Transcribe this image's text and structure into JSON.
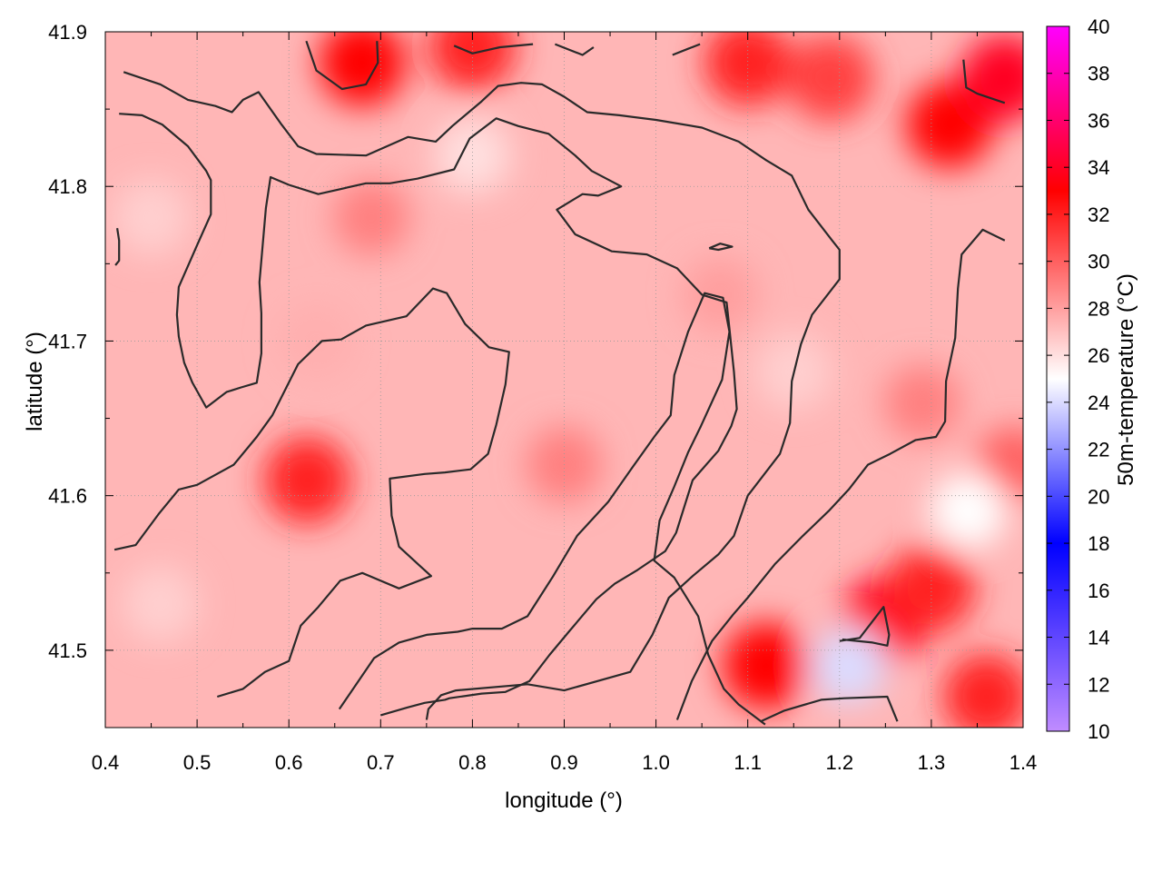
{
  "chart_data": {
    "type": "heatmap",
    "variable_label": "50m-temperature (°C)",
    "xlabel": "longitude (°)",
    "ylabel": "latitude (°)",
    "xlim": [
      0.4,
      1.4
    ],
    "ylim": [
      41.45,
      41.9
    ],
    "x_ticks": [
      "0.4",
      "0.5",
      "0.6",
      "0.7",
      "0.8",
      "0.9",
      "1.0",
      "1.1",
      "1.2",
      "1.3",
      "1.4"
    ],
    "y_ticks": [
      "41.5",
      "41.6",
      "41.7",
      "41.8",
      "41.9"
    ],
    "colorbar": {
      "range": [
        10,
        40
      ],
      "ticks": [
        "10",
        "12",
        "14",
        "16",
        "18",
        "20",
        "22",
        "24",
        "26",
        "28",
        "30",
        "32",
        "34",
        "36",
        "38",
        "40"
      ],
      "colors": [
        {
          "value": 10,
          "color": "#c08cff"
        },
        {
          "value": 18,
          "color": "#0000ff"
        },
        {
          "value": 25,
          "color": "#ffffff"
        },
        {
          "value": 33,
          "color": "#ff0000"
        },
        {
          "value": 40,
          "color": "#ff00ff"
        }
      ]
    },
    "grid": true,
    "contour_color": "#2a2a2a",
    "hotspots": [
      {
        "lon": 0.68,
        "lat": 41.88,
        "temp": 33
      },
      {
        "lon": 0.8,
        "lat": 41.89,
        "temp": 32
      },
      {
        "lon": 1.1,
        "lat": 41.88,
        "temp": 32
      },
      {
        "lon": 1.19,
        "lat": 41.87,
        "temp": 31
      },
      {
        "lon": 1.32,
        "lat": 41.84,
        "temp": 33
      },
      {
        "lon": 1.38,
        "lat": 41.87,
        "temp": 34
      },
      {
        "lon": 0.69,
        "lat": 41.78,
        "temp": 29
      },
      {
        "lon": 0.62,
        "lat": 41.61,
        "temp": 32
      },
      {
        "lon": 1.25,
        "lat": 41.52,
        "temp": 34
      },
      {
        "lon": 1.3,
        "lat": 41.54,
        "temp": 32
      },
      {
        "lon": 1.12,
        "lat": 41.49,
        "temp": 33
      },
      {
        "lon": 1.36,
        "lat": 41.47,
        "temp": 32
      },
      {
        "lon": 1.39,
        "lat": 41.62,
        "temp": 30
      },
      {
        "lon": 1.29,
        "lat": 41.66,
        "temp": 29
      },
      {
        "lon": 0.9,
        "lat": 41.62,
        "temp": 29
      },
      {
        "lon": 1.07,
        "lat": 41.73,
        "temp": 28
      },
      {
        "lon": 0.63,
        "lat": 41.7,
        "temp": 27.5
      }
    ],
    "coolspots": [
      {
        "lon": 0.8,
        "lat": 41.82,
        "temp": 26
      },
      {
        "lon": 1.21,
        "lat": 41.49,
        "temp": 24
      },
      {
        "lon": 1.34,
        "lat": 41.59,
        "temp": 25
      },
      {
        "lon": 1.15,
        "lat": 41.68,
        "temp": 26.5
      },
      {
        "lon": 0.46,
        "lat": 41.53,
        "temp": 26.5
      },
      {
        "lon": 0.45,
        "lat": 41.78,
        "temp": 26.5
      }
    ],
    "contours": [
      [
        [
          0.42,
          41.874
        ],
        [
          0.46,
          41.866
        ],
        [
          0.49,
          41.856
        ],
        [
          0.52,
          41.852
        ],
        [
          0.538,
          41.848
        ],
        [
          0.55,
          41.856
        ],
        [
          0.567,
          41.861
        ],
        [
          0.592,
          41.84
        ],
        [
          0.61,
          41.826
        ],
        [
          0.63,
          41.821
        ],
        [
          0.684,
          41.82
        ],
        [
          0.73,
          41.832
        ],
        [
          0.76,
          41.829
        ],
        [
          0.778,
          41.839
        ],
        [
          0.81,
          41.855
        ],
        [
          0.828,
          41.865
        ],
        [
          0.853,
          41.867
        ],
        [
          0.876,
          41.866
        ],
        [
          0.9,
          41.858
        ],
        [
          0.925,
          41.848
        ],
        [
          0.96,
          41.846
        ],
        [
          1.0,
          41.843
        ],
        [
          1.05,
          41.838
        ],
        [
          1.09,
          41.829
        ],
        [
          1.12,
          41.817
        ],
        [
          1.148,
          41.807
        ],
        [
          1.166,
          41.785
        ],
        [
          1.192,
          41.765
        ],
        [
          1.2,
          41.759
        ],
        [
          1.2,
          41.74
        ],
        [
          1.17,
          41.717
        ],
        [
          1.158,
          41.698
        ],
        [
          1.148,
          41.674
        ],
        [
          1.146,
          41.647
        ],
        [
          1.135,
          41.627
        ],
        [
          1.1,
          41.6
        ],
        [
          1.085,
          41.574
        ],
        [
          1.068,
          41.562
        ],
        [
          1.04,
          41.548
        ],
        [
          1.014,
          41.534
        ],
        [
          0.996,
          41.51
        ],
        [
          0.972,
          41.486
        ],
        [
          0.9,
          41.474
        ],
        [
          0.86,
          41.478
        ],
        [
          0.782,
          41.474
        ],
        [
          0.766,
          41.471
        ],
        [
          0.752,
          41.462
        ],
        [
          0.75,
          41.455
        ]
      ],
      [
        [
          0.415,
          41.847
        ],
        [
          0.44,
          41.846
        ],
        [
          0.462,
          41.84
        ],
        [
          0.49,
          41.826
        ],
        [
          0.51,
          41.81
        ],
        [
          0.515,
          41.804
        ],
        [
          0.515,
          41.782
        ],
        [
          0.5,
          41.762
        ],
        [
          0.48,
          41.735
        ],
        [
          0.478,
          41.717
        ],
        [
          0.48,
          41.703
        ],
        [
          0.486,
          41.686
        ],
        [
          0.495,
          41.673
        ],
        [
          0.51,
          41.657
        ],
        [
          0.532,
          41.667
        ],
        [
          0.548,
          41.67
        ],
        [
          0.565,
          41.673
        ],
        [
          0.57,
          41.692
        ],
        [
          0.57,
          41.718
        ],
        [
          0.568,
          41.738
        ],
        [
          0.575,
          41.786
        ],
        [
          0.58,
          41.806
        ],
        [
          0.6,
          41.801
        ],
        [
          0.632,
          41.795
        ],
        [
          0.684,
          41.802
        ],
        [
          0.71,
          41.802
        ],
        [
          0.74,
          41.805
        ],
        [
          0.78,
          41.811
        ],
        [
          0.797,
          41.831
        ],
        [
          0.826,
          41.844
        ],
        [
          0.85,
          41.839
        ],
        [
          0.883,
          41.834
        ],
        [
          0.912,
          41.82
        ],
        [
          0.93,
          41.81
        ],
        [
          0.962,
          41.8
        ],
        [
          0.937,
          41.794
        ],
        [
          0.92,
          41.795
        ],
        [
          0.892,
          41.785
        ],
        [
          0.912,
          41.769
        ],
        [
          0.952,
          41.758
        ],
        [
          0.99,
          41.756
        ],
        [
          1.023,
          41.747
        ],
        [
          1.05,
          41.73
        ],
        [
          1.077,
          41.725
        ],
        [
          1.08,
          41.708
        ],
        [
          1.085,
          41.68
        ],
        [
          1.088,
          41.656
        ],
        [
          1.082,
          41.645
        ],
        [
          1.068,
          41.629
        ],
        [
          1.04,
          41.61
        ],
        [
          1.022,
          41.576
        ],
        [
          1.01,
          41.564
        ],
        [
          0.98,
          41.552
        ],
        [
          0.955,
          41.543
        ],
        [
          0.935,
          41.533
        ],
        [
          0.905,
          41.512
        ],
        [
          0.884,
          41.497
        ],
        [
          0.862,
          41.48
        ],
        [
          0.836,
          41.473
        ],
        [
          0.81,
          41.472
        ],
        [
          0.775,
          41.469
        ],
        [
          0.77,
          41.468
        ],
        [
          0.748,
          41.466
        ],
        [
          0.729,
          41.463
        ],
        [
          0.7,
          41.458
        ]
      ],
      [
        [
          0.41,
          41.565
        ],
        [
          0.433,
          41.568
        ],
        [
          0.458,
          41.588
        ],
        [
          0.48,
          41.604
        ],
        [
          0.5,
          41.607
        ],
        [
          0.54,
          41.62
        ],
        [
          0.565,
          41.638
        ],
        [
          0.582,
          41.652
        ],
        [
          0.61,
          41.685
        ],
        [
          0.636,
          41.7
        ],
        [
          0.657,
          41.701
        ],
        [
          0.684,
          41.71
        ],
        [
          0.728,
          41.716
        ],
        [
          0.757,
          41.734
        ],
        [
          0.772,
          41.731
        ],
        [
          0.792,
          41.711
        ],
        [
          0.818,
          41.696
        ],
        [
          0.84,
          41.693
        ],
        [
          0.836,
          41.672
        ],
        [
          0.826,
          41.646
        ],
        [
          0.817,
          41.627
        ],
        [
          0.798,
          41.617
        ],
        [
          0.77,
          41.615
        ],
        [
          0.748,
          41.614
        ],
        [
          0.71,
          41.611
        ],
        [
          0.712,
          41.587
        ],
        [
          0.72,
          41.567
        ],
        [
          0.742,
          41.555
        ],
        [
          0.755,
          41.548
        ],
        [
          0.72,
          41.54
        ],
        [
          0.68,
          41.55
        ],
        [
          0.656,
          41.545
        ],
        [
          0.632,
          41.528
        ],
        [
          0.613,
          41.516
        ],
        [
          0.605,
          41.502
        ],
        [
          0.6,
          41.493
        ],
        [
          0.574,
          41.486
        ],
        [
          0.55,
          41.475
        ],
        [
          0.522,
          41.47
        ]
      ],
      [
        [
          0.655,
          41.462
        ],
        [
          0.67,
          41.475
        ],
        [
          0.693,
          41.495
        ],
        [
          0.72,
          41.505
        ],
        [
          0.75,
          41.51
        ],
        [
          0.784,
          41.512
        ],
        [
          0.8,
          41.514
        ],
        [
          0.832,
          41.514
        ],
        [
          0.86,
          41.522
        ],
        [
          0.888,
          41.548
        ],
        [
          0.914,
          41.574
        ],
        [
          0.948,
          41.596
        ],
        [
          0.974,
          41.618
        ],
        [
          0.998,
          41.638
        ],
        [
          1.016,
          41.652
        ],
        [
          1.02,
          41.678
        ],
        [
          1.035,
          41.706
        ],
        [
          1.053,
          41.731
        ],
        [
          1.073,
          41.728
        ],
        [
          1.08,
          41.706
        ],
        [
          1.072,
          41.675
        ],
        [
          1.049,
          41.645
        ],
        [
          1.035,
          41.628
        ],
        [
          1.02,
          41.606
        ],
        [
          1.004,
          41.584
        ],
        [
          0.998,
          41.558
        ],
        [
          1.02,
          41.547
        ],
        [
          1.046,
          41.522
        ],
        [
          1.057,
          41.497
        ],
        [
          1.074,
          41.475
        ],
        [
          1.09,
          41.465
        ],
        [
          1.119,
          41.452
        ]
      ],
      [
        [
          1.023,
          41.455
        ],
        [
          1.039,
          41.48
        ],
        [
          1.061,
          41.506
        ],
        [
          1.084,
          41.523
        ],
        [
          1.1,
          41.534
        ],
        [
          1.13,
          41.556
        ],
        [
          1.16,
          41.574
        ],
        [
          1.188,
          41.59
        ],
        [
          1.21,
          41.604
        ],
        [
          1.231,
          41.62
        ],
        [
          1.255,
          41.627
        ],
        [
          1.283,
          41.636
        ],
        [
          1.305,
          41.638
        ],
        [
          1.315,
          41.648
        ],
        [
          1.316,
          41.674
        ],
        [
          1.326,
          41.702
        ],
        [
          1.329,
          41.734
        ],
        [
          1.333,
          41.756
        ],
        [
          1.356,
          41.772
        ],
        [
          1.38,
          41.765
        ]
      ],
      [
        [
          1.2,
          41.506
        ],
        [
          1.222,
          41.508
        ],
        [
          1.248,
          41.528
        ],
        [
          1.254,
          41.51
        ],
        [
          1.252,
          41.503
        ],
        [
          1.236,
          41.505
        ],
        [
          1.203,
          41.507
        ]
      ],
      [
        [
          1.114,
          41.454
        ],
        [
          1.14,
          41.461
        ],
        [
          1.18,
          41.468
        ],
        [
          1.205,
          41.469
        ],
        [
          1.252,
          41.47
        ],
        [
          1.263,
          41.454
        ]
      ],
      [
        [
          1.058,
          41.76
        ],
        [
          1.07,
          41.763
        ],
        [
          1.083,
          41.761
        ],
        [
          1.068,
          41.759
        ],
        [
          1.058,
          41.76
        ]
      ],
      [
        [
          0.619,
          41.894
        ],
        [
          0.63,
          41.875
        ],
        [
          0.658,
          41.863
        ],
        [
          0.684,
          41.866
        ],
        [
          0.697,
          41.88
        ],
        [
          0.696,
          41.894
        ]
      ],
      [
        [
          0.78,
          41.891
        ],
        [
          0.8,
          41.886
        ],
        [
          0.83,
          41.89
        ],
        [
          0.866,
          41.892
        ]
      ],
      [
        [
          0.89,
          41.892
        ],
        [
          0.92,
          41.885
        ],
        [
          0.932,
          41.89
        ]
      ],
      [
        [
          1.018,
          41.885
        ],
        [
          1.035,
          41.889
        ],
        [
          1.048,
          41.892
        ]
      ],
      [
        [
          1.335,
          41.882
        ],
        [
          1.338,
          41.864
        ],
        [
          1.35,
          41.86
        ],
        [
          1.38,
          41.854
        ]
      ],
      [
        [
          0.413,
          41.773
        ],
        [
          0.415,
          41.765
        ],
        [
          0.415,
          41.752
        ],
        [
          0.411,
          41.749
        ]
      ]
    ]
  }
}
